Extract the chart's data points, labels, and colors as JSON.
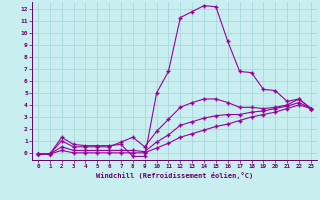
{
  "xlabel": "Windchill (Refroidissement éolien,°C)",
  "background_color": "#c8eef0",
  "grid_color": "#a8d8dc",
  "line_color": "#990099",
  "xlim": [
    -0.5,
    23.5
  ],
  "ylim": [
    -0.6,
    12.6
  ],
  "xticks": [
    0,
    1,
    2,
    3,
    4,
    5,
    6,
    7,
    8,
    9,
    10,
    11,
    12,
    13,
    14,
    15,
    16,
    17,
    18,
    19,
    20,
    21,
    22,
    23
  ],
  "yticks": [
    0,
    1,
    2,
    3,
    4,
    5,
    6,
    7,
    8,
    9,
    10,
    11,
    12
  ],
  "curve1_x": [
    0,
    1,
    2,
    3,
    4,
    5,
    6,
    7,
    8,
    9,
    10,
    11,
    12,
    13,
    14,
    15,
    16,
    17,
    18,
    19,
    20,
    21,
    22,
    23
  ],
  "curve1_y": [
    -0.1,
    -0.1,
    1.3,
    0.7,
    0.6,
    0.6,
    0.6,
    0.7,
    -0.3,
    -0.3,
    5.0,
    6.8,
    11.3,
    11.8,
    12.3,
    12.2,
    9.3,
    6.8,
    6.7,
    5.3,
    5.2,
    4.3,
    4.5,
    3.7
  ],
  "curve2_x": [
    0,
    1,
    2,
    3,
    4,
    5,
    6,
    7,
    8,
    9,
    10,
    11,
    12,
    13,
    14,
    15,
    16,
    17,
    18,
    19,
    20,
    21,
    22,
    23
  ],
  "curve2_y": [
    -0.1,
    -0.1,
    1.0,
    0.5,
    0.5,
    0.5,
    0.5,
    0.9,
    1.3,
    0.5,
    1.8,
    2.8,
    3.8,
    4.2,
    4.5,
    4.5,
    4.2,
    3.8,
    3.8,
    3.7,
    3.8,
    4.0,
    4.5,
    3.7
  ],
  "curve3_x": [
    0,
    1,
    2,
    3,
    4,
    5,
    6,
    7,
    8,
    9,
    10,
    11,
    12,
    13,
    14,
    15,
    16,
    17,
    18,
    19,
    20,
    21,
    22,
    23
  ],
  "curve3_y": [
    -0.1,
    -0.1,
    0.5,
    0.2,
    0.2,
    0.2,
    0.2,
    0.2,
    0.2,
    0.1,
    0.9,
    1.5,
    2.3,
    2.6,
    2.9,
    3.1,
    3.2,
    3.2,
    3.4,
    3.5,
    3.7,
    3.9,
    4.2,
    3.7
  ],
  "curve4_x": [
    0,
    1,
    2,
    3,
    4,
    5,
    6,
    7,
    8,
    9,
    10,
    11,
    12,
    13,
    14,
    15,
    16,
    17,
    18,
    19,
    20,
    21,
    22,
    23
  ],
  "curve4_y": [
    -0.1,
    -0.1,
    0.2,
    0.0,
    0.0,
    0.0,
    0.0,
    0.0,
    0.0,
    0.0,
    0.4,
    0.8,
    1.3,
    1.6,
    1.9,
    2.2,
    2.4,
    2.7,
    3.0,
    3.2,
    3.4,
    3.7,
    4.0,
    3.7
  ]
}
